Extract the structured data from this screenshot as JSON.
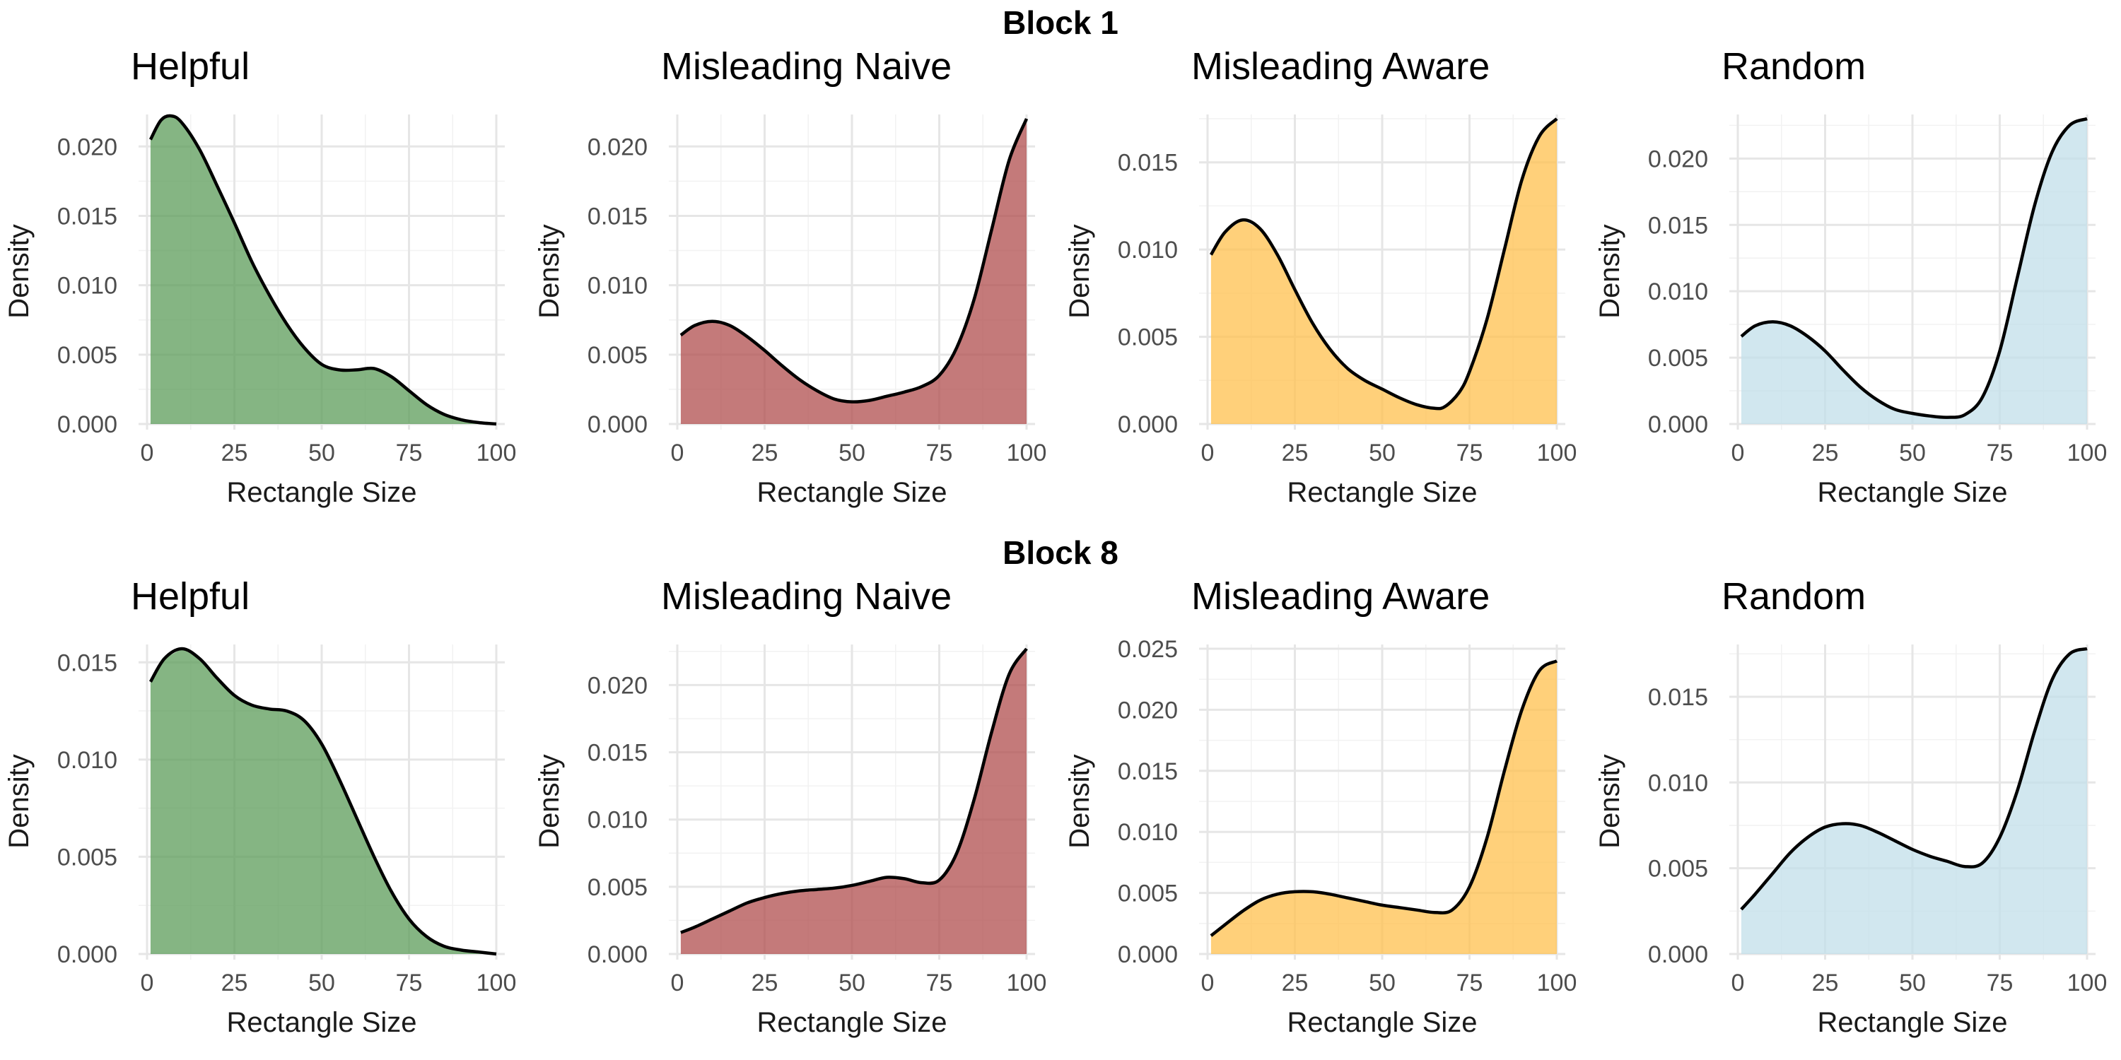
{
  "figure": {
    "blocks": [
      "Block 1",
      "Block 8"
    ]
  },
  "chart_data": [
    {
      "type": "area",
      "block": "Block 1",
      "title": "Helpful",
      "xlabel": "Rectangle Size",
      "ylabel": "Density",
      "xlim": [
        0,
        100
      ],
      "ylim": [
        0,
        0.022
      ],
      "xticks": [
        "0",
        "25",
        "50",
        "75",
        "100"
      ],
      "yticks": [
        "0.000",
        "0.005",
        "0.010",
        "0.015",
        "0.020"
      ],
      "fill": "#5C9C5A",
      "x": [
        1,
        4,
        7,
        10,
        15,
        20,
        25,
        30,
        35,
        40,
        45,
        50,
        55,
        60,
        65,
        70,
        75,
        80,
        85,
        90,
        95,
        100
      ],
      "y": [
        0.0205,
        0.0219,
        0.0222,
        0.0217,
        0.0198,
        0.0172,
        0.0145,
        0.0117,
        0.0093,
        0.0072,
        0.0055,
        0.0043,
        0.0039,
        0.0039,
        0.004,
        0.0034,
        0.0024,
        0.0014,
        0.0007,
        0.0003,
        0.0001,
        0.0
      ]
    },
    {
      "type": "area",
      "block": "Block 1",
      "title": "Misleading Naive",
      "xlabel": "Rectangle Size",
      "ylabel": "Density",
      "xlim": [
        0,
        100
      ],
      "ylim": [
        0,
        0.022
      ],
      "xticks": [
        "0",
        "25",
        "50",
        "75",
        "100"
      ],
      "yticks": [
        "0.000",
        "0.005",
        "0.010",
        "0.015",
        "0.020"
      ],
      "fill": "#B04E4E",
      "x": [
        1,
        5,
        10,
        15,
        20,
        25,
        30,
        35,
        40,
        45,
        50,
        55,
        60,
        65,
        70,
        75,
        80,
        85,
        90,
        95,
        100
      ],
      "y": [
        0.0064,
        0.0071,
        0.0074,
        0.0071,
        0.0063,
        0.0053,
        0.0042,
        0.0032,
        0.0024,
        0.0018,
        0.0016,
        0.0017,
        0.002,
        0.0023,
        0.0027,
        0.0035,
        0.0055,
        0.009,
        0.014,
        0.019,
        0.022
      ]
    },
    {
      "type": "area",
      "block": "Block 1",
      "title": "Misleading Aware",
      "xlabel": "Rectangle Size",
      "ylabel": "Density",
      "xlim": [
        0,
        100
      ],
      "ylim": [
        0,
        0.0175
      ],
      "xticks": [
        "0",
        "25",
        "50",
        "75",
        "100"
      ],
      "yticks": [
        "0.000",
        "0.005",
        "0.010",
        "0.015"
      ],
      "fill": "#FFC04D",
      "x": [
        1,
        5,
        10,
        15,
        20,
        25,
        30,
        35,
        40,
        45,
        50,
        55,
        60,
        65,
        68,
        72,
        75,
        80,
        85,
        90,
        95,
        100
      ],
      "y": [
        0.0097,
        0.011,
        0.0117,
        0.0112,
        0.0097,
        0.0077,
        0.0058,
        0.0043,
        0.0032,
        0.0025,
        0.002,
        0.0015,
        0.0011,
        0.0009,
        0.001,
        0.0018,
        0.003,
        0.006,
        0.01,
        0.014,
        0.0165,
        0.0175
      ]
    },
    {
      "type": "area",
      "block": "Block 1",
      "title": "Random",
      "xlabel": "Rectangle Size",
      "ylabel": "Density",
      "xlim": [
        0,
        100
      ],
      "ylim": [
        0,
        0.023
      ],
      "xticks": [
        "0",
        "25",
        "50",
        "75",
        "100"
      ],
      "yticks": [
        "0.000",
        "0.005",
        "0.010",
        "0.015",
        "0.020"
      ],
      "fill": "#C1DFEA",
      "x": [
        1,
        5,
        10,
        15,
        20,
        25,
        30,
        35,
        40,
        45,
        50,
        55,
        60,
        65,
        70,
        75,
        80,
        85,
        90,
        95,
        100
      ],
      "y": [
        0.0066,
        0.0074,
        0.0077,
        0.0074,
        0.0066,
        0.0055,
        0.0041,
        0.0028,
        0.0018,
        0.0011,
        0.0008,
        0.0006,
        0.0005,
        0.0007,
        0.002,
        0.0055,
        0.011,
        0.0165,
        0.0205,
        0.0225,
        0.023
      ]
    },
    {
      "type": "area",
      "block": "Block 8",
      "title": "Helpful",
      "xlabel": "Rectangle Size",
      "ylabel": "Density",
      "xlim": [
        0,
        100
      ],
      "ylim": [
        0,
        0.0157
      ],
      "xticks": [
        "0",
        "25",
        "50",
        "75",
        "100"
      ],
      "yticks": [
        "0.000",
        "0.005",
        "0.010",
        "0.015"
      ],
      "fill": "#5C9C5A",
      "x": [
        1,
        5,
        10,
        15,
        20,
        25,
        30,
        35,
        40,
        45,
        50,
        55,
        60,
        65,
        70,
        75,
        80,
        85,
        90,
        95,
        100
      ],
      "y": [
        0.014,
        0.0152,
        0.0157,
        0.0152,
        0.0142,
        0.0133,
        0.0128,
        0.0126,
        0.0125,
        0.012,
        0.0108,
        0.009,
        0.007,
        0.005,
        0.0032,
        0.0018,
        0.0009,
        0.0004,
        0.0002,
        0.0001,
        0.0
      ]
    },
    {
      "type": "area",
      "block": "Block 8",
      "title": "Misleading Naive",
      "xlabel": "Rectangle Size",
      "ylabel": "Density",
      "xlim": [
        0,
        100
      ],
      "ylim": [
        0,
        0.0227
      ],
      "xticks": [
        "0",
        "25",
        "50",
        "75",
        "100"
      ],
      "yticks": [
        "0.000",
        "0.005",
        "0.010",
        "0.015",
        "0.020"
      ],
      "fill": "#B04E4E",
      "x": [
        1,
        5,
        10,
        15,
        20,
        25,
        30,
        35,
        40,
        45,
        50,
        55,
        60,
        65,
        70,
        75,
        80,
        85,
        90,
        95,
        100
      ],
      "y": [
        0.0016,
        0.002,
        0.0026,
        0.0032,
        0.0038,
        0.0042,
        0.0045,
        0.0047,
        0.0048,
        0.0049,
        0.0051,
        0.0054,
        0.0057,
        0.0056,
        0.0053,
        0.0055,
        0.0075,
        0.0115,
        0.0165,
        0.0208,
        0.0227
      ]
    },
    {
      "type": "area",
      "block": "Block 8",
      "title": "Misleading Aware",
      "xlabel": "Rectangle Size",
      "ylabel": "Density",
      "xlim": [
        0,
        100
      ],
      "ylim": [
        0,
        0.025
      ],
      "xticks": [
        "0",
        "25",
        "50",
        "75",
        "100"
      ],
      "yticks": [
        "0.000",
        "0.005",
        "0.010",
        "0.015",
        "0.020",
        "0.025"
      ],
      "fill": "#FFC04D",
      "x": [
        1,
        5,
        10,
        15,
        20,
        25,
        30,
        35,
        40,
        45,
        50,
        55,
        60,
        65,
        70,
        75,
        80,
        85,
        90,
        95,
        100
      ],
      "y": [
        0.0015,
        0.0024,
        0.0035,
        0.0044,
        0.0049,
        0.0051,
        0.0051,
        0.0049,
        0.0046,
        0.0043,
        0.004,
        0.0038,
        0.0036,
        0.0034,
        0.0036,
        0.0055,
        0.0095,
        0.015,
        0.02,
        0.0232,
        0.024
      ]
    },
    {
      "type": "area",
      "block": "Block 8",
      "title": "Random",
      "xlabel": "Rectangle Size",
      "ylabel": "Density",
      "xlim": [
        0,
        100
      ],
      "ylim": [
        0,
        0.0178
      ],
      "xticks": [
        "0",
        "25",
        "50",
        "75",
        "100"
      ],
      "yticks": [
        "0.000",
        "0.005",
        "0.010",
        "0.015"
      ],
      "fill": "#C1DFEA",
      "x": [
        1,
        5,
        10,
        15,
        20,
        25,
        30,
        35,
        40,
        45,
        50,
        55,
        60,
        65,
        70,
        75,
        80,
        85,
        90,
        95,
        100
      ],
      "y": [
        0.0026,
        0.0035,
        0.0047,
        0.0059,
        0.0068,
        0.0074,
        0.0076,
        0.0075,
        0.0071,
        0.0066,
        0.0061,
        0.0057,
        0.0054,
        0.0051,
        0.0053,
        0.0068,
        0.0095,
        0.013,
        0.016,
        0.0175,
        0.0178
      ]
    }
  ]
}
